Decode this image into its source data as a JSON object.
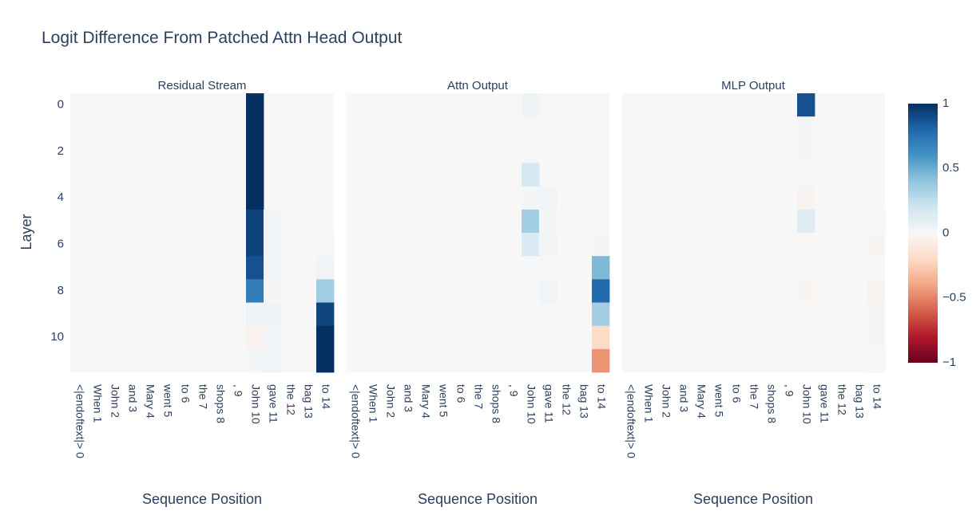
{
  "chart_data": {
    "type": "heatmap",
    "title": "Logit Difference From Patched Attn Head Output",
    "ylabel": "Layer",
    "xlabel": "Sequence Position",
    "x_tick_labels": [
      "<|endoftext|> 0",
      "When 1",
      "John 2",
      "and 3",
      "Mary 4",
      "went 5",
      "to 6",
      "the 7",
      "shops 8",
      ", 9",
      "John 10",
      "gave 11",
      "the 12",
      "bag 13",
      "to 14"
    ],
    "y_tick_labels": [
      "0",
      "2",
      "4",
      "6",
      "8",
      "10"
    ],
    "layers": 12,
    "colorbar": {
      "min": -1,
      "max": 1,
      "tick_values": [
        1,
        0.5,
        0,
        -0.5,
        -1
      ],
      "tick_labels": [
        "1",
        "0.5",
        "0",
        "−0.5",
        "−1"
      ],
      "colorscale": "RdBu"
    },
    "panels": [
      {
        "title": "Residual Stream",
        "z": [
          [
            0,
            0,
            0,
            0,
            0,
            0,
            0,
            0,
            0,
            0,
            1.0,
            0,
            0,
            0,
            0
          ],
          [
            0,
            0,
            0,
            0,
            0,
            0,
            0,
            0,
            0,
            0,
            1.0,
            0,
            0,
            0,
            0
          ],
          [
            0,
            0,
            0,
            0,
            0,
            0,
            0,
            0,
            0,
            0,
            1.0,
            0,
            0,
            0,
            0
          ],
          [
            0,
            0,
            0,
            0,
            0,
            0,
            0,
            0,
            0,
            0,
            1.0,
            0,
            0,
            0,
            0
          ],
          [
            0,
            0,
            0,
            0,
            0,
            0,
            0,
            0,
            0,
            0,
            1.0,
            0,
            0,
            0,
            0
          ],
          [
            0,
            0,
            0,
            0,
            0,
            0,
            0,
            0,
            0,
            0,
            0.93,
            0.03,
            0,
            0,
            0
          ],
          [
            0,
            0,
            0,
            0,
            0,
            0,
            0,
            0,
            0,
            0,
            0.93,
            0.03,
            0,
            0,
            0.01
          ],
          [
            0,
            0,
            0,
            0,
            0,
            0,
            0,
            0,
            0,
            0,
            0.88,
            0.03,
            0,
            0,
            0.03
          ],
          [
            0,
            0,
            0,
            0,
            0,
            0,
            0,
            0,
            0,
            0,
            0.7,
            0.02,
            0,
            0,
            0.35
          ],
          [
            0,
            0,
            0,
            0,
            0,
            0,
            0,
            0,
            0,
            0,
            0.05,
            0.04,
            0,
            0,
            0.92
          ],
          [
            0,
            0,
            0,
            0,
            0,
            0,
            0,
            0,
            0,
            0,
            -0.04,
            0.03,
            0,
            0,
            1.0
          ],
          [
            0,
            0,
            0,
            0,
            0,
            0,
            0,
            0,
            0,
            0,
            0.02,
            0.03,
            0,
            0,
            1.0
          ]
        ]
      },
      {
        "title": "Attn Output",
        "z": [
          [
            0,
            0,
            0,
            0,
            0,
            0,
            0,
            0,
            0,
            0,
            0.04,
            0,
            0,
            0,
            0
          ],
          [
            0,
            0,
            0,
            0,
            0,
            0,
            0,
            0,
            0,
            0,
            0.01,
            0,
            0,
            0,
            0
          ],
          [
            0,
            0,
            0,
            0,
            0,
            0,
            0,
            0,
            0,
            0,
            0.01,
            0,
            0,
            0,
            0
          ],
          [
            0,
            0,
            0,
            0,
            0,
            0,
            0,
            0,
            0,
            0,
            0.18,
            0,
            0,
            0,
            0
          ],
          [
            0,
            0,
            0,
            0,
            0,
            0,
            0,
            0,
            0,
            0,
            0.02,
            0.03,
            0,
            0,
            0
          ],
          [
            0,
            0,
            0,
            0,
            0,
            0,
            0,
            0,
            0,
            0,
            0.35,
            0.02,
            0,
            0,
            0
          ],
          [
            0,
            0,
            0,
            0,
            0,
            0,
            0,
            0,
            0,
            0,
            0.15,
            0.03,
            0,
            0,
            0.02
          ],
          [
            0,
            0,
            0,
            0,
            0,
            0,
            0,
            0,
            0,
            0,
            0.01,
            0.01,
            0,
            0,
            0.45
          ],
          [
            0,
            0,
            0,
            0,
            0,
            0,
            0,
            0,
            0,
            0,
            0,
            0.03,
            0,
            0,
            0.78
          ],
          [
            0,
            0,
            0,
            0,
            0,
            0,
            0,
            0,
            0,
            0,
            0,
            0.01,
            0,
            0,
            0.35
          ],
          [
            0,
            0,
            0,
            0,
            0,
            0,
            0,
            0,
            0,
            0,
            0,
            0,
            0,
            0,
            -0.2
          ],
          [
            0,
            0,
            0,
            0,
            0,
            0,
            0,
            0,
            0,
            0,
            0,
            0,
            0,
            0,
            -0.45
          ]
        ]
      },
      {
        "title": "MLP Output",
        "z": [
          [
            0,
            0,
            0,
            0,
            0,
            0,
            0,
            0,
            0,
            0,
            0.88,
            0,
            0,
            0,
            0
          ],
          [
            0,
            0,
            0,
            0,
            0,
            0,
            0,
            0,
            0,
            0,
            0.02,
            0,
            0,
            0,
            0
          ],
          [
            0,
            0,
            0,
            0,
            0,
            0,
            0,
            0,
            0,
            0,
            0.02,
            0,
            0,
            0,
            0
          ],
          [
            0,
            0,
            0,
            0,
            0,
            0,
            0,
            0,
            0,
            0,
            0,
            0,
            0,
            0,
            0
          ],
          [
            0,
            0,
            0,
            0,
            0,
            0,
            0,
            0,
            0,
            0,
            -0.03,
            0,
            0,
            0,
            0
          ],
          [
            0,
            0,
            0,
            0,
            0,
            0,
            0,
            0,
            0,
            0,
            0.12,
            0,
            0,
            0,
            0.01
          ],
          [
            0,
            0,
            0,
            0,
            0,
            0,
            0,
            0,
            0,
            0,
            -0.01,
            0,
            0,
            0,
            -0.02
          ],
          [
            0,
            0,
            0,
            0,
            0,
            0,
            0,
            0,
            0,
            0,
            0.01,
            0,
            0,
            0,
            0
          ],
          [
            0,
            0,
            0,
            0,
            0,
            0,
            0,
            0,
            0,
            0,
            -0.02,
            0,
            0,
            0,
            -0.03
          ],
          [
            0,
            0,
            0,
            0,
            0,
            0,
            0,
            0,
            0,
            0,
            0,
            0,
            0,
            0,
            0.02
          ],
          [
            0,
            0,
            0,
            0,
            0,
            0,
            0,
            0,
            0,
            0,
            0,
            0,
            0,
            0,
            0.02
          ],
          [
            0,
            0,
            0,
            0,
            0,
            0,
            0,
            0,
            0,
            0,
            0,
            0,
            0,
            0,
            0.01
          ]
        ]
      }
    ]
  }
}
